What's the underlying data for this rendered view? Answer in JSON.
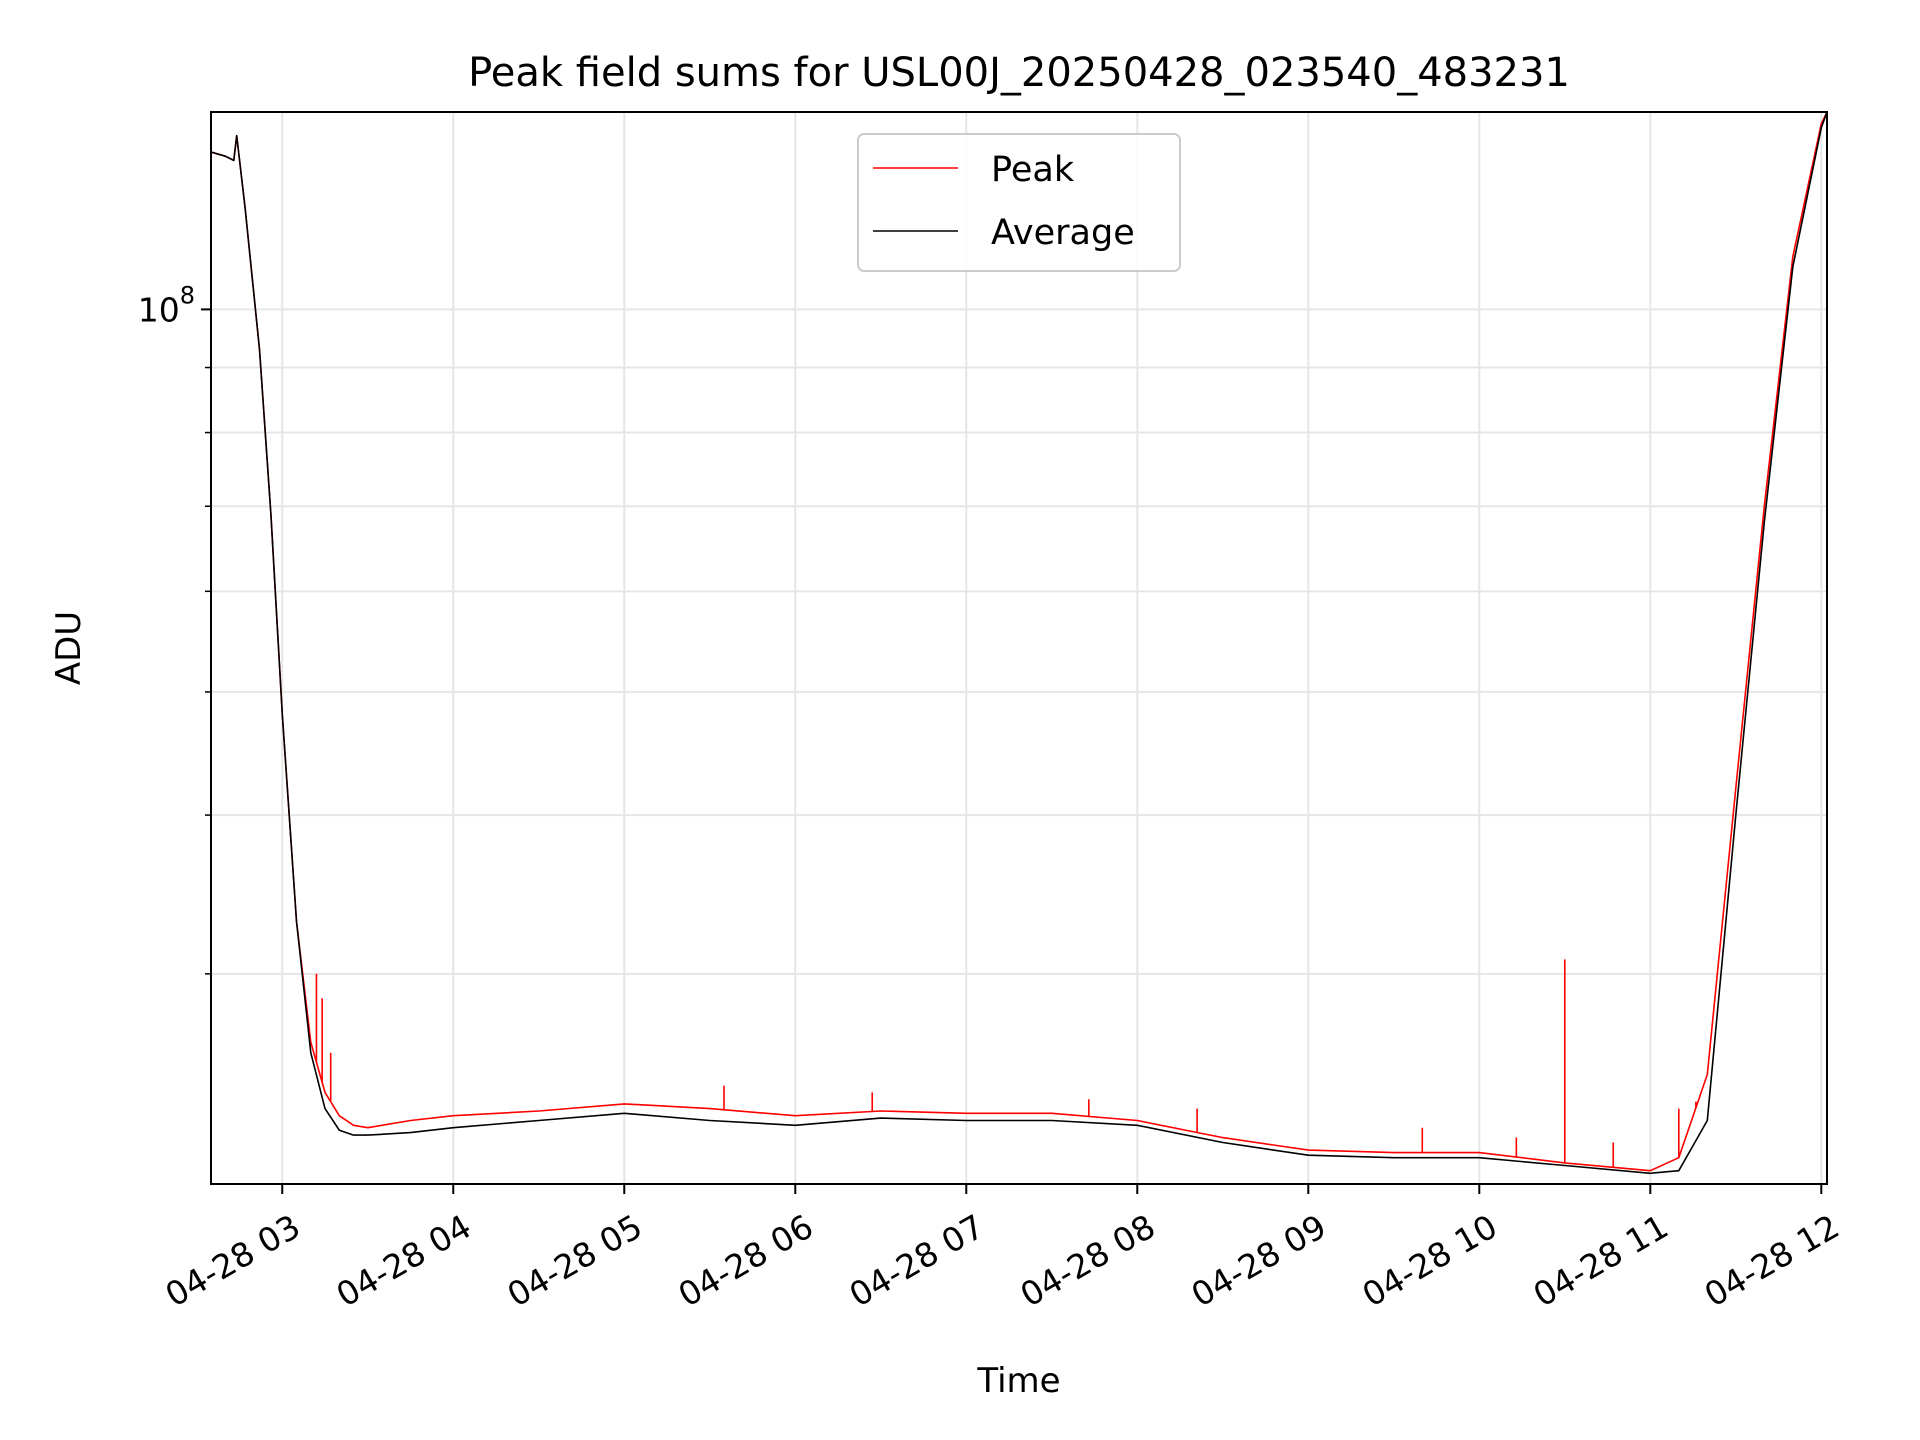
{
  "chart_data": {
    "type": "line",
    "title": "Peak field sums for USL00J_20250428_023540_483231",
    "xlabel": "Time",
    "ylabel": "ADU",
    "y_scale": "log",
    "grid": true,
    "legend_position": "upper-center",
    "xlim": [
      "04-28 02:35",
      "04-28 12:02"
    ],
    "ylim": [
      20500000,
      143000000
    ],
    "x_ticks": [
      "04-28 03",
      "04-28 04",
      "04-28 05",
      "04-28 06",
      "04-28 07",
      "04-28 08",
      "04-28 09",
      "04-28 10",
      "04-28 11",
      "04-28 12"
    ],
    "y_major_ticks": [
      {
        "value": 100000000,
        "base": "10",
        "exp": "8"
      }
    ],
    "y_minor_ticks": [
      30000000,
      40000000,
      50000000,
      60000000,
      70000000,
      80000000,
      90000000
    ],
    "series": [
      {
        "name": "Peak",
        "color": "#ff0000",
        "x": [
          "04-28 02:35",
          "04-28 02:40",
          "04-28 02:43",
          "04-28 02:44",
          "04-28 02:47",
          "04-28 02:52",
          "04-28 02:56",
          "04-28 03:00",
          "04-28 03:05",
          "04-28 03:10",
          "04-28 03:15",
          "04-28 03:20",
          "04-28 03:25",
          "04-28 03:30",
          "04-28 03:45",
          "04-28 04:00",
          "04-28 04:30",
          "04-28 05:00",
          "04-28 05:30",
          "04-28 06:00",
          "04-28 06:30",
          "04-28 07:00",
          "04-28 07:30",
          "04-28 08:00",
          "04-28 08:30",
          "04-28 09:00",
          "04-28 09:30",
          "04-28 10:00",
          "04-28 10:30",
          "04-28 11:00",
          "04-28 11:10",
          "04-28 11:20",
          "04-28 11:30",
          "04-28 11:40",
          "04-28 11:50",
          "04-28 12:00",
          "04-28 12:02"
        ],
        "values": [
          133000000,
          132000000,
          131000000,
          137000000,
          120000000,
          93000000,
          69000000,
          48000000,
          33000000,
          26500000,
          24200000,
          23200000,
          22800000,
          22700000,
          23000000,
          23200000,
          23400000,
          23700000,
          23500000,
          23200000,
          23400000,
          23300000,
          23300000,
          23000000,
          22300000,
          21800000,
          21700000,
          21700000,
          21300000,
          21000000,
          21500000,
          25000000,
          42000000,
          70000000,
          110000000,
          140000000,
          143000000
        ],
        "spikes": [
          {
            "x": "04-28 03:12",
            "value": 30000000
          },
          {
            "x": "04-28 03:14",
            "value": 28700000
          },
          {
            "x": "04-28 03:17",
            "value": 26000000
          },
          {
            "x": "04-28 05:35",
            "value": 24500000
          },
          {
            "x": "04-28 06:27",
            "value": 24200000
          },
          {
            "x": "04-28 07:43",
            "value": 23900000
          },
          {
            "x": "04-28 08:21",
            "value": 23500000
          },
          {
            "x": "04-28 09:40",
            "value": 22700000
          },
          {
            "x": "04-28 10:13",
            "value": 22300000
          },
          {
            "x": "04-28 10:30",
            "value": 30800000
          },
          {
            "x": "04-28 10:47",
            "value": 22100000
          },
          {
            "x": "04-28 11:10",
            "value": 23500000
          },
          {
            "x": "04-28 11:16",
            "value": 23800000
          }
        ]
      },
      {
        "name": "Average",
        "color": "#000000",
        "x": [
          "04-28 02:35",
          "04-28 02:40",
          "04-28 02:43",
          "04-28 02:44",
          "04-28 02:47",
          "04-28 02:52",
          "04-28 02:56",
          "04-28 03:00",
          "04-28 03:05",
          "04-28 03:10",
          "04-28 03:15",
          "04-28 03:20",
          "04-28 03:25",
          "04-28 03:30",
          "04-28 03:45",
          "04-28 04:00",
          "04-28 04:30",
          "04-28 05:00",
          "04-28 05:30",
          "04-28 06:00",
          "04-28 06:30",
          "04-28 07:00",
          "04-28 07:30",
          "04-28 08:00",
          "04-28 08:30",
          "04-28 09:00",
          "04-28 09:30",
          "04-28 10:00",
          "04-28 10:30",
          "04-28 11:00",
          "04-28 11:10",
          "04-28 11:20",
          "04-28 11:30",
          "04-28 11:40",
          "04-28 11:50",
          "04-28 12:00",
          "04-28 12:02"
        ],
        "values": [
          133000000,
          132000000,
          131000000,
          137000000,
          120000000,
          93000000,
          69000000,
          48000000,
          33000000,
          26000000,
          23500000,
          22600000,
          22400000,
          22400000,
          22500000,
          22700000,
          23000000,
          23300000,
          23000000,
          22800000,
          23100000,
          23000000,
          23000000,
          22800000,
          22100000,
          21600000,
          21500000,
          21500000,
          21200000,
          20900000,
          21000000,
          23000000,
          40000000,
          68000000,
          108000000,
          139000000,
          143000000
        ]
      }
    ]
  }
}
